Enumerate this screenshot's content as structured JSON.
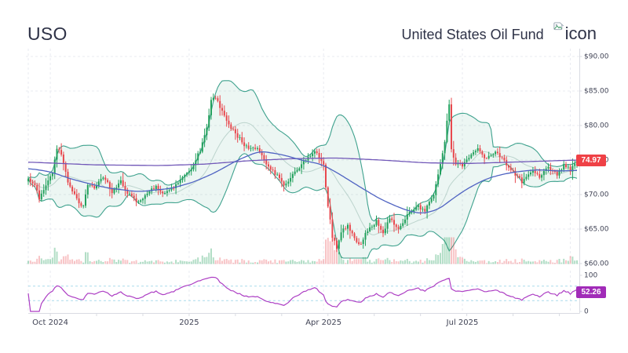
{
  "header": {
    "symbol": "USO",
    "fund_name": "United States Oil Fund",
    "logo_text": "icon"
  },
  "colors": {
    "up": "#22a05c",
    "down": "#e8484e",
    "band_line": "#3fa28e",
    "band_fill": "rgba(64,165,140,0.10)",
    "sma20": "#bcd4cd",
    "ma_fast": "#4f63c2",
    "ma_slow": "#7158b8",
    "vol_up": "rgba(34,160,92,0.35)",
    "vol_down": "rgba(232,72,78,0.32)",
    "rsi_line": "#ad3fc4",
    "rsi_guide": "#aadcec",
    "price_badge": "#ef4146",
    "rsi_badge": "#a12bb8",
    "grid": "#e9ebf1",
    "axis_line": "#d9dbe2",
    "tick_text": "#3f4254",
    "header_text": "#2e3247"
  },
  "chart_data": {
    "type": "candlestick",
    "title": "USO — United States Oil Fund",
    "days": 250,
    "price_ylim": [
      60,
      90
    ],
    "last_close": 74.97,
    "last_price_label": "74.97",
    "price_ticks": [
      {
        "label": "$90.00",
        "value": 90
      },
      {
        "label": "$85.00",
        "value": 85
      },
      {
        "label": "$80.00",
        "value": 80
      },
      {
        "label": "$75.00",
        "value": 75
      },
      {
        "label": "$70.00",
        "value": 70
      },
      {
        "label": "$65.00",
        "value": 65
      },
      {
        "label": "$60.00",
        "value": 60
      }
    ],
    "x_ticks": [
      {
        "label": "Oct 2024",
        "day": 10
      },
      {
        "label": "2025",
        "day": 73
      },
      {
        "label": "Apr 2025",
        "day": 134
      },
      {
        "label": "Jul 2025",
        "day": 197
      }
    ],
    "extra_grid_days": [
      0,
      246
    ],
    "close_anchors": [
      [
        0,
        72.3
      ],
      [
        3,
        71.2
      ],
      [
        5,
        69.5
      ],
      [
        8,
        71.3
      ],
      [
        11,
        73.2
      ],
      [
        13,
        76.8
      ],
      [
        15,
        75.6
      ],
      [
        18,
        71.9
      ],
      [
        22,
        69.2
      ],
      [
        25,
        68.1
      ],
      [
        27,
        71.4
      ],
      [
        30,
        71.0
      ],
      [
        34,
        72.7
      ],
      [
        38,
        70.4
      ],
      [
        42,
        71.8
      ],
      [
        46,
        69.9
      ],
      [
        50,
        68.8
      ],
      [
        54,
        70.4
      ],
      [
        58,
        71.2
      ],
      [
        62,
        70.1
      ],
      [
        66,
        71.1
      ],
      [
        70,
        72.4
      ],
      [
        74,
        73.9
      ],
      [
        78,
        76.4
      ],
      [
        81,
        79.8
      ],
      [
        83,
        83.6
      ],
      [
        85,
        84.2
      ],
      [
        88,
        81.9
      ],
      [
        92,
        79.6
      ],
      [
        96,
        78.1
      ],
      [
        100,
        76.4
      ],
      [
        104,
        76.9
      ],
      [
        108,
        74.6
      ],
      [
        112,
        73.1
      ],
      [
        116,
        71.3
      ],
      [
        120,
        72.9
      ],
      [
        124,
        74.4
      ],
      [
        128,
        75.7
      ],
      [
        131,
        76.2
      ],
      [
        134,
        74.1
      ],
      [
        136,
        68.4
      ],
      [
        138,
        64.0
      ],
      [
        140,
        62.4
      ],
      [
        142,
        64.6
      ],
      [
        145,
        65.6
      ],
      [
        148,
        63.6
      ],
      [
        151,
        62.8
      ],
      [
        154,
        64.9
      ],
      [
        158,
        66.1
      ],
      [
        161,
        64.6
      ],
      [
        164,
        66.6
      ],
      [
        168,
        65.1
      ],
      [
        172,
        66.9
      ],
      [
        176,
        68.4
      ],
      [
        180,
        67.6
      ],
      [
        184,
        70.1
      ],
      [
        187,
        74.4
      ],
      [
        189,
        77.9
      ],
      [
        191,
        83.1
      ],
      [
        192,
        76.4
      ],
      [
        194,
        74.6
      ],
      [
        197,
        74.0
      ],
      [
        200,
        75.4
      ],
      [
        204,
        76.8
      ],
      [
        208,
        75.1
      ],
      [
        212,
        76.4
      ],
      [
        216,
        74.9
      ],
      [
        220,
        73.3
      ],
      [
        224,
        71.9
      ],
      [
        228,
        73.4
      ],
      [
        232,
        72.6
      ],
      [
        236,
        73.9
      ],
      [
        240,
        72.9
      ],
      [
        243,
        74.3
      ],
      [
        246,
        73.5
      ],
      [
        249,
        74.97
      ]
    ],
    "bollinger": {
      "window": 20,
      "stdev_mult": 2
    },
    "ma_fast_anchors": [
      [
        0,
        73.8
      ],
      [
        10,
        73.3
      ],
      [
        20,
        72.2
      ],
      [
        35,
        71.0
      ],
      [
        50,
        70.4
      ],
      [
        65,
        70.9
      ],
      [
        75,
        71.8
      ],
      [
        85,
        73.2
      ],
      [
        95,
        75.0
      ],
      [
        105,
        76.3
      ],
      [
        115,
        75.8
      ],
      [
        125,
        74.9
      ],
      [
        133,
        74.4
      ],
      [
        140,
        73.2
      ],
      [
        150,
        71.2
      ],
      [
        160,
        69.3
      ],
      [
        170,
        67.9
      ],
      [
        178,
        67.2
      ],
      [
        186,
        67.8
      ],
      [
        193,
        69.5
      ],
      [
        200,
        71.0
      ],
      [
        208,
        72.3
      ],
      [
        216,
        73.0
      ],
      [
        224,
        73.4
      ],
      [
        232,
        73.6
      ],
      [
        240,
        73.4
      ],
      [
        249,
        73.5
      ]
    ],
    "ma_slow_anchors": [
      [
        0,
        74.7
      ],
      [
        30,
        74.3
      ],
      [
        60,
        74.2
      ],
      [
        80,
        74.4
      ],
      [
        100,
        74.9
      ],
      [
        120,
        75.2
      ],
      [
        140,
        75.3
      ],
      [
        160,
        75.0
      ],
      [
        180,
        74.6
      ],
      [
        200,
        74.5
      ],
      [
        220,
        74.7
      ],
      [
        249,
        75.0
      ]
    ],
    "volume": {
      "base": 1.2,
      "range_mult": 7,
      "max_height": 34,
      "spikes": [
        [
          12,
          6
        ],
        [
          27,
          4
        ],
        [
          84,
          5
        ],
        [
          136,
          11
        ],
        [
          138,
          13
        ],
        [
          140,
          9
        ],
        [
          151,
          5
        ],
        [
          189,
          16
        ],
        [
          190,
          24
        ],
        [
          191,
          30
        ],
        [
          192,
          20
        ],
        [
          193,
          11
        ],
        [
          196,
          7
        ],
        [
          246,
          4
        ]
      ]
    },
    "rsi": {
      "period": 14,
      "ylim": [
        0,
        100
      ],
      "guides": [
        70,
        30
      ],
      "last_value": 52.26,
      "last_label": "52.26",
      "ticks": [
        {
          "label": "100",
          "value": 100
        },
        {
          "label": "0",
          "value": 0
        }
      ]
    }
  }
}
